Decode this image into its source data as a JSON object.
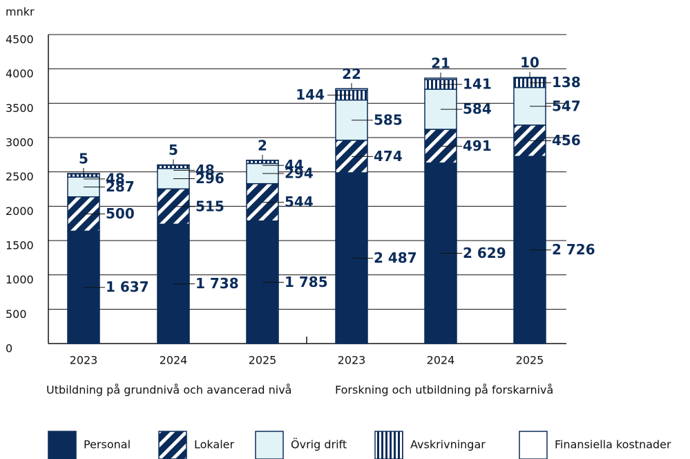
{
  "chart_data": {
    "type": "stacked_bar",
    "y_label": "mnkr",
    "categories": [
      "2023",
      "2024",
      "2025",
      "2023",
      "2024",
      "2025"
    ],
    "groups": [
      "Utbildning på grundnivå och avancerad nivå",
      "Forskning och utbildning på forskarnivå"
    ],
    "ylim": [
      0,
      4500
    ],
    "yticks": [
      0,
      500,
      1000,
      1500,
      2000,
      2500,
      3000,
      3500,
      4000,
      4500
    ],
    "grid": true,
    "series": [
      {
        "name": "Personal",
        "color": "#0b2c5a",
        "pattern": "solid",
        "values": [
          1637,
          1738,
          1785,
          2487,
          2629,
          2726
        ],
        "value_labels": [
          "1 637",
          "1 738",
          "1 785",
          "2 487",
          "2 629",
          "2 726"
        ]
      },
      {
        "name": "Lokaler",
        "color": "#0b2c5a",
        "pattern": "diagonal",
        "values": [
          500,
          515,
          544,
          474,
          491,
          456
        ]
      },
      {
        "name": "Övrig drift",
        "color": "#e1f3f6",
        "pattern": "solid",
        "values": [
          287,
          296,
          294,
          585,
          584,
          547
        ]
      },
      {
        "name": "Avskrivningar",
        "color": "#0b2c5a",
        "pattern": "vertical",
        "values": [
          48,
          48,
          44,
          144,
          141,
          138
        ]
      },
      {
        "name": "Finansiella kostnader",
        "color": "#ffffff",
        "pattern": "solid",
        "values": [
          5,
          5,
          2,
          22,
          21,
          10
        ]
      }
    ],
    "legend": "bottom"
  }
}
